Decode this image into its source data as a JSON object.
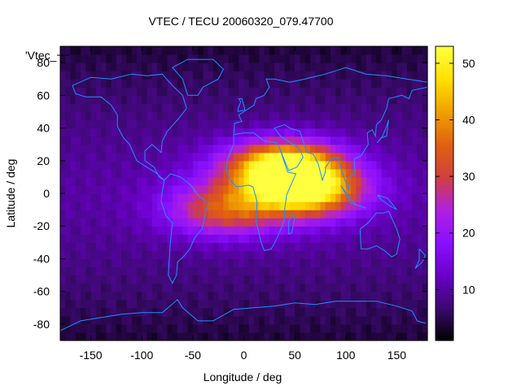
{
  "chart_data": {
    "type": "heatmap",
    "title": "VTEC / TECU 20060320_079.47700",
    "xlabel": "Longitude / deg",
    "ylabel": "Latitude / deg",
    "legend_entry": "'Vtec_",
    "xlim": [
      -180,
      180
    ],
    "ylim": [
      -90,
      90
    ],
    "x_ticks": [
      -150,
      -100,
      -50,
      0,
      50,
      100,
      150
    ],
    "y_ticks": [
      -80,
      -60,
      -40,
      -20,
      0,
      20,
      40,
      60,
      80
    ],
    "colorbar": {
      "range": [
        1,
        53
      ],
      "ticks": [
        10,
        20,
        30,
        40,
        50
      ],
      "palette": [
        "#000000",
        "#3b0a6e",
        "#6a00c8",
        "#8a10ff",
        "#b020e0",
        "#d04040",
        "#e06010",
        "#f0a000",
        "#ffe000",
        "#ffff40"
      ]
    },
    "grid_resolution_deg": 5,
    "tec_model": {
      "background": 10,
      "anomaly_peaks": [
        {
          "lon": 40,
          "lat": 17,
          "value": 52
        },
        {
          "lon": 60,
          "lat": 2,
          "value": 48
        },
        {
          "lon": -20,
          "lat": -10,
          "value": 30
        }
      ],
      "polar_minimum": 4
    },
    "coastline_color": "#1e90ff"
  }
}
